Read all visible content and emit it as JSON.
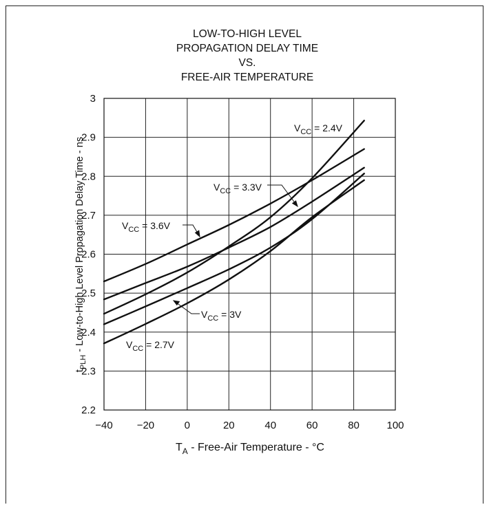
{
  "chart_data": {
    "type": "line",
    "title": [
      "LOW-TO-HIGH LEVEL",
      "PROPAGATION DELAY TIME",
      "VS.",
      "FREE-AIR TEMPERATURE"
    ],
    "xlabel": {
      "main": "T",
      "sub": "A",
      "rest": " - Free-Air Temperature - °C"
    },
    "ylabel": {
      "pre": "t",
      "sub": "PLH",
      "rest": " - Low-to-High Level Propagation Delay Time - ns"
    },
    "xlim": [
      -40,
      100
    ],
    "ylim": [
      2.2,
      3.0
    ],
    "xticks": [
      -40,
      -20,
      0,
      20,
      40,
      60,
      80,
      100
    ],
    "xtick_labels": [
      "−40",
      "−20",
      "0",
      "20",
      "40",
      "60",
      "80",
      "100"
    ],
    "yticks": [
      2.2,
      2.3,
      2.4,
      2.5,
      2.6,
      2.7,
      2.8,
      2.9,
      3.0
    ],
    "ytick_labels": [
      "2.2",
      "2.3",
      "2.4",
      "2.5",
      "2.6",
      "2.7",
      "2.8",
      "2.9",
      "3"
    ],
    "grid": true,
    "series": [
      {
        "name": "VCC = 3.6V",
        "x": [
          -40,
          -20,
          0,
          20,
          40,
          60,
          85
        ],
        "y": [
          2.53,
          2.575,
          2.625,
          2.675,
          2.73,
          2.79,
          2.87
        ]
      },
      {
        "name": "VCC = 3.3V",
        "x": [
          -40,
          -20,
          0,
          20,
          40,
          60,
          85
        ],
        "y": [
          2.484,
          2.526,
          2.568,
          2.617,
          2.67,
          2.735,
          2.822
        ]
      },
      {
        "name": "VCC = 2.4V",
        "x": [
          -40,
          -20,
          0,
          20,
          40,
          60,
          85
        ],
        "y": [
          2.447,
          2.497,
          2.553,
          2.62,
          2.695,
          2.795,
          2.943
        ]
      },
      {
        "name": "VCC = 3V",
        "x": [
          -40,
          -20,
          0,
          20,
          40,
          60,
          85
        ],
        "y": [
          2.42,
          2.466,
          2.513,
          2.561,
          2.617,
          2.69,
          2.807
        ]
      },
      {
        "name": "VCC = 2.7V",
        "x": [
          -40,
          -20,
          0,
          20,
          40,
          60,
          85
        ],
        "y": [
          2.371,
          2.421,
          2.474,
          2.535,
          2.608,
          2.695,
          2.79
        ]
      }
    ],
    "annotations": [
      {
        "base": "V",
        "sub": "CC",
        "rest": " = 2.4V"
      },
      {
        "base": "V",
        "sub": "CC",
        "rest": " = 3.3V"
      },
      {
        "base": "V",
        "sub": "CC",
        "rest": " = 3.6V"
      },
      {
        "base": "V",
        "sub": "CC",
        "rest": " = 3V"
      },
      {
        "base": "V",
        "sub": "CC",
        "rest": " = 2.7V"
      }
    ]
  }
}
